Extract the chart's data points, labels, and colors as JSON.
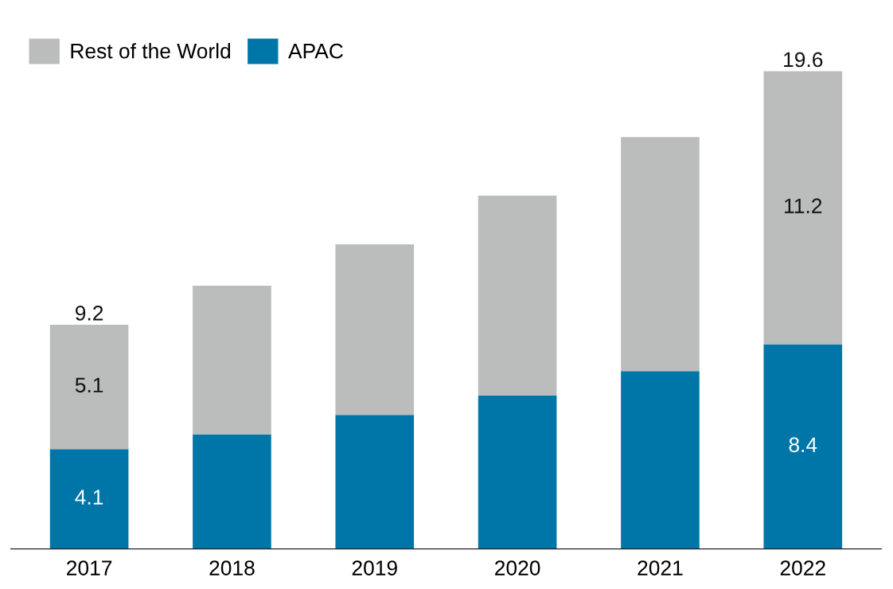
{
  "chart_data": {
    "type": "bar",
    "stacked": true,
    "categories": [
      "2017",
      "2018",
      "2019",
      "2020",
      "2021",
      "2022"
    ],
    "series": [
      {
        "name": "APAC",
        "color": "#0076a8",
        "values": [
          4.1,
          4.7,
          5.5,
          6.3,
          7.3,
          8.4
        ],
        "value_labels": [
          "4.1",
          null,
          null,
          null,
          null,
          "8.4"
        ]
      },
      {
        "name": "Rest of the World",
        "color": "#bbbcbc",
        "values": [
          5.1,
          6.1,
          7.0,
          8.2,
          9.6,
          11.2
        ],
        "value_labels": [
          "5.1",
          null,
          null,
          null,
          null,
          "11.2"
        ]
      }
    ],
    "totals": [
      "9.2",
      null,
      null,
      null,
      null,
      "19.6"
    ],
    "legend": "top left",
    "grid": false
  }
}
